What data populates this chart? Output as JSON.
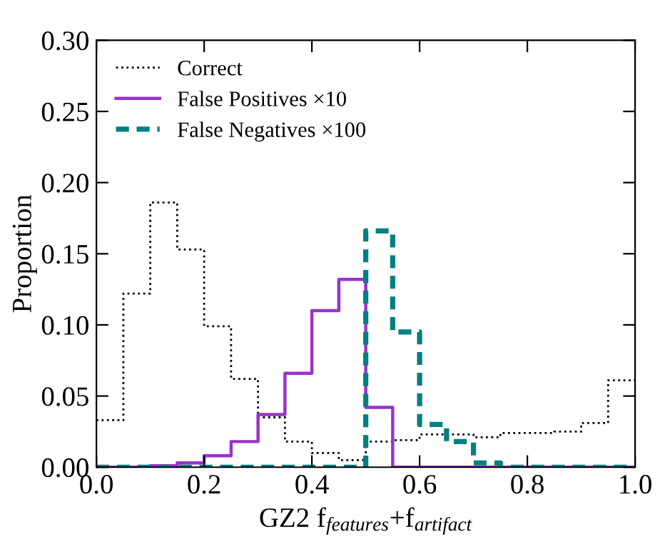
{
  "chart_data": {
    "type": "histogram",
    "xlabel": "GZ2 f$_{features}$+f$_{artifact}$",
    "ylabel": "Proportion",
    "bins": [
      0.0,
      0.05,
      0.1,
      0.15,
      0.2,
      0.25,
      0.3,
      0.35,
      0.4,
      0.45,
      0.5,
      0.55,
      0.6,
      0.65,
      0.7,
      0.75,
      0.8,
      0.85,
      0.9,
      0.95,
      1.0
    ],
    "series": [
      {
        "name": "Correct",
        "color": "#000000",
        "line_style": "dotted",
        "values": [
          0.033,
          0.122,
          0.186,
          0.153,
          0.099,
          0.062,
          0.035,
          0.018,
          0.01,
          0.005,
          0.018,
          0.019,
          0.023,
          0.023,
          0.021,
          0.024,
          0.024,
          0.025,
          0.031,
          0.061
        ]
      },
      {
        "name": "False Positives ×10",
        "color": "#9932cc",
        "line_style": "solid",
        "values": [
          0,
          0,
          0.001,
          0.003,
          0.008,
          0.018,
          0.037,
          0.066,
          0.11,
          0.132,
          0.042,
          0,
          0,
          0,
          0,
          0,
          0,
          0,
          0,
          0
        ]
      },
      {
        "name": "False Negatives ×100",
        "color": "#008080",
        "line_style": "dashed",
        "values": [
          0,
          0,
          0,
          0,
          0,
          0,
          0,
          0,
          0,
          0,
          0.166,
          0.095,
          0.03,
          0.018,
          0.003,
          0,
          0,
          0,
          0,
          0
        ]
      }
    ],
    "xlim": [
      0.0,
      1.0
    ],
    "xticks": [
      {
        "value": 0.0,
        "label": "0.0"
      },
      {
        "value": 0.2,
        "label": "0.2"
      },
      {
        "value": 0.4,
        "label": "0.4"
      },
      {
        "value": 0.6,
        "label": "0.6"
      },
      {
        "value": 0.8,
        "label": "0.8"
      },
      {
        "value": 1.0,
        "label": "1.0"
      }
    ],
    "ylim": [
      0.0,
      0.3
    ],
    "yticks": [
      {
        "value": 0.0,
        "label": "0.00"
      },
      {
        "value": 0.05,
        "label": "0.05"
      },
      {
        "value": 0.1,
        "label": "0.10"
      },
      {
        "value": 0.15,
        "label": "0.15"
      },
      {
        "value": 0.2,
        "label": "0.20"
      },
      {
        "value": 0.25,
        "label": "0.25"
      },
      {
        "value": 0.3,
        "label": "0.30"
      }
    ],
    "legend": "top left",
    "grid": false
  }
}
